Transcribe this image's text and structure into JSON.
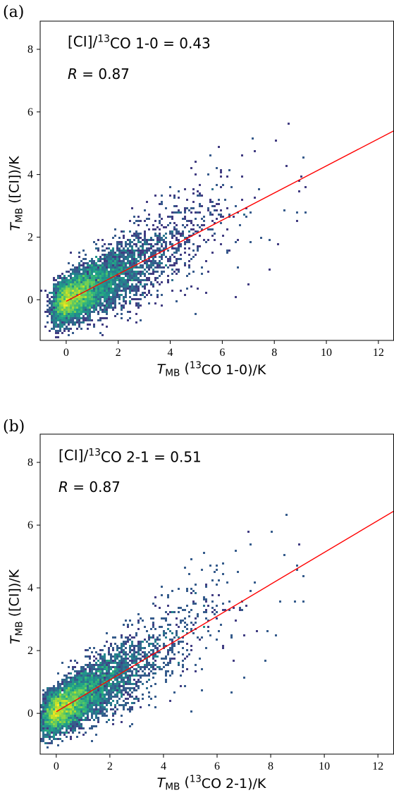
{
  "chart_data": [
    {
      "type": "scatter",
      "panel_label": "(a)",
      "ratio_text": "[CI]/¹³CO 1-0 = 0.43",
      "r_text": "R = 0.87",
      "ratio_value": 0.43,
      "correlation": 0.87,
      "xlabel": "T_MB (¹³CO 1-0)/K",
      "ylabel": "T_MB ([CI])/K",
      "xlim": [
        -1.0,
        12.6
      ],
      "ylim": [
        -1.3,
        8.9
      ],
      "xticks": [
        0,
        2,
        4,
        6,
        8,
        10,
        12
      ],
      "yticks": [
        0,
        2,
        4,
        6,
        8
      ],
      "fit_line": {
        "x": [
          0,
          12.6
        ],
        "y": [
          -0.05,
          5.4
        ]
      },
      "points_summary": "dense 2D-histogram scatter concentrated near (0, 0), spreading along the fitted line; outliers up to x~12, y~8",
      "colormap": "viridis",
      "fit_color": "#ff0000"
    },
    {
      "type": "scatter",
      "panel_label": "(b)",
      "ratio_text": "[CI]/¹³CO 2-1 = 0.51",
      "r_text": "R = 0.87",
      "ratio_value": 0.51,
      "correlation": 0.87,
      "xlabel": "T_MB (¹³CO 2-1)/K",
      "ylabel": "T_MB ([CI])/K",
      "xlim": [
        -0.6,
        12.6
      ],
      "ylim": [
        -1.3,
        8.9
      ],
      "xticks": [
        0,
        2,
        4,
        6,
        8,
        10,
        12
      ],
      "yticks": [
        0,
        2,
        4,
        6,
        8
      ],
      "fit_line": {
        "x": [
          0,
          12.6
        ],
        "y": [
          0.05,
          6.45
        ]
      },
      "points_summary": "dense 2D-histogram scatter concentrated near (0, 0), spreading along the fitted line; outliers up to x~11, y~8",
      "colormap": "viridis",
      "fit_color": "#ff0000"
    }
  ]
}
